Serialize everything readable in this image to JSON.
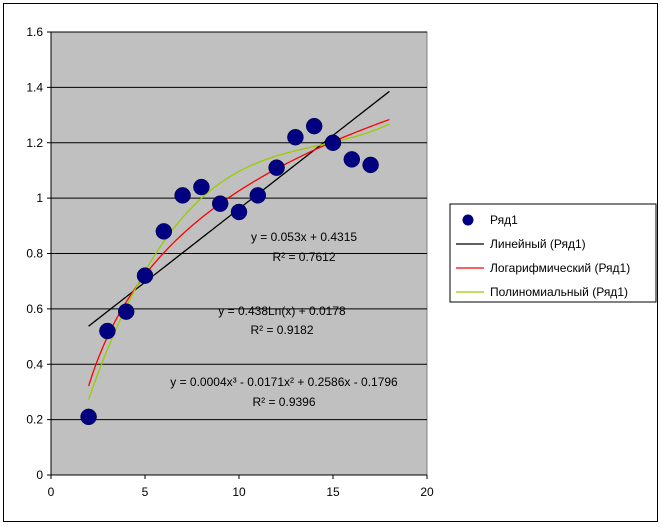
{
  "chart_data": {
    "type": "scatter",
    "title": "",
    "xlabel": "",
    "ylabel": "",
    "xlim": [
      0,
      20
    ],
    "ylim": [
      0,
      1.6
    ],
    "x_ticks": [
      0,
      5,
      10,
      15,
      20
    ],
    "y_ticks": [
      0,
      0.2,
      0.4,
      0.6,
      0.8,
      1,
      1.2,
      1.4,
      1.6
    ],
    "grid": "horizontal",
    "plot_background": "#c0c0c0",
    "legend_position": "right",
    "series": [
      {
        "name": "Ряд1",
        "kind": "scatter",
        "color": "#000080",
        "x": [
          2,
          3,
          4,
          5,
          6,
          7,
          8,
          9,
          10,
          11,
          12,
          13,
          14,
          15,
          16,
          17
        ],
        "y": [
          0.21,
          0.52,
          0.59,
          0.72,
          0.88,
          1.01,
          1.04,
          0.98,
          0.95,
          1.01,
          1.11,
          1.22,
          1.26,
          1.2,
          1.14,
          1.12
        ]
      }
    ],
    "trendlines": [
      {
        "name": "Линейный (Ряд1)",
        "type": "linear",
        "color": "#000000",
        "coefficients": [
          0.053,
          0.4315
        ],
        "x_range": [
          2,
          18
        ],
        "equation": "y = 0.053x + 0.4315",
        "r2": "R² = 0.7612"
      },
      {
        "name": "Логарифмический (Ряд1)",
        "type": "logarithmic",
        "color": "#ff0000",
        "coefficients": [
          0.438,
          0.0178
        ],
        "x_range": [
          2,
          18
        ],
        "equation": "y = 0.438Ln(x) + 0.0178",
        "r2": "R² = 0.9182"
      },
      {
        "name": "Полиномиальный (Ряд1)",
        "type": "polynomial",
        "color": "#99cc00",
        "coefficients": [
          0.0004,
          -0.0171,
          0.2586,
          -0.1796
        ],
        "x_range": [
          2,
          18
        ],
        "equation": "y = 0.0004x³ - 0.0171x² + 0.2586x - 0.1796",
        "r2": "R² = 0.9396"
      }
    ]
  }
}
